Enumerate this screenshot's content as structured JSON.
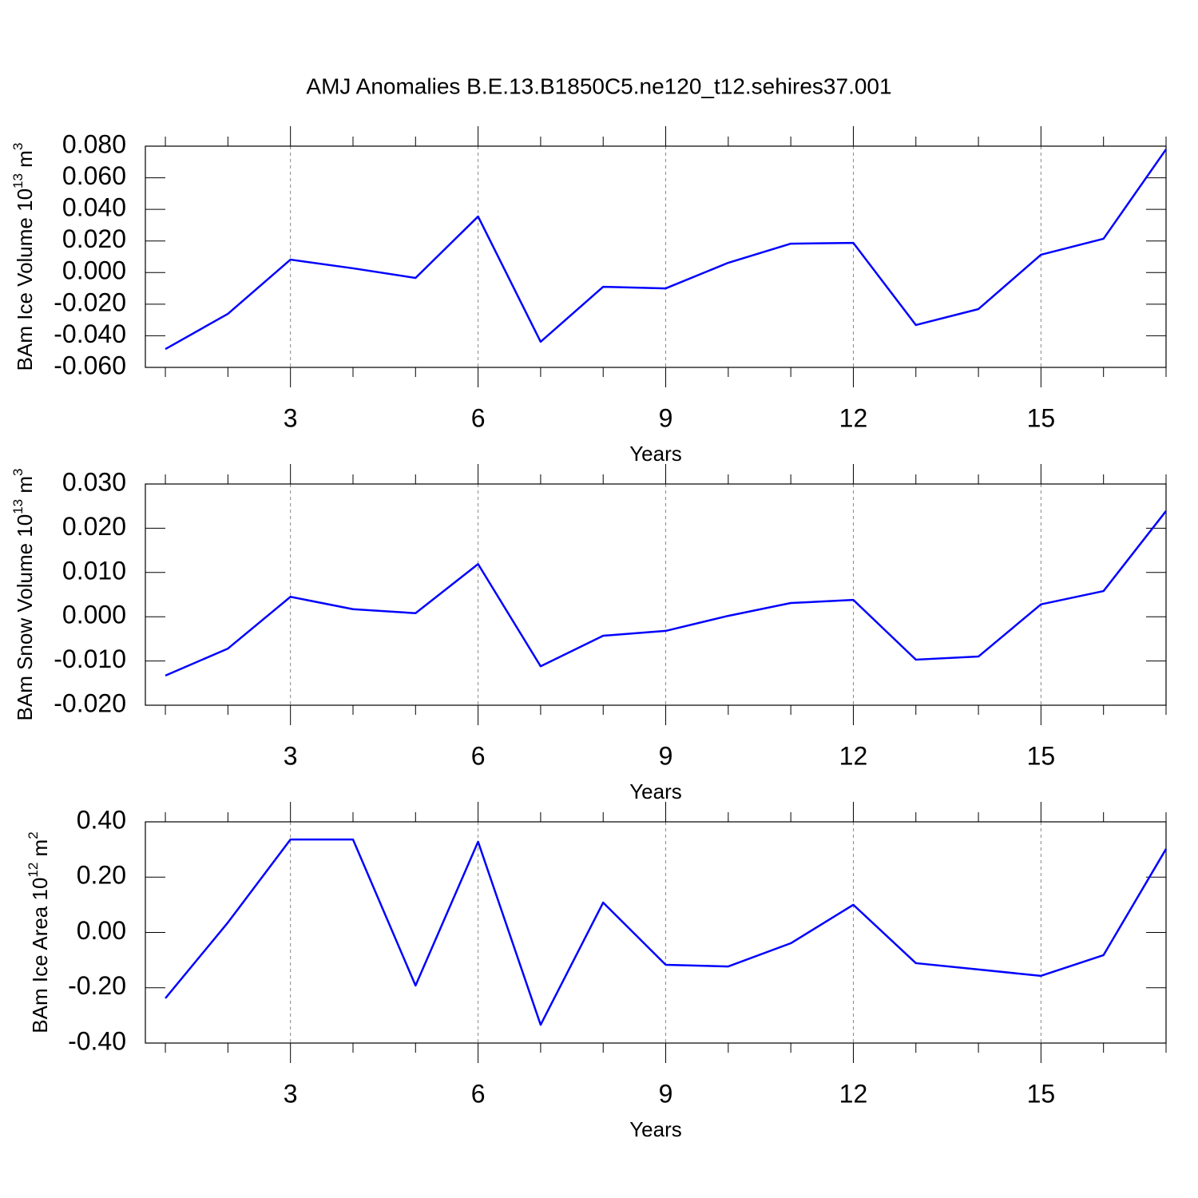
{
  "title": "AMJ Anomalies B.E.13.B1850C5.ne120_t12.sehires37.001",
  "chart_data": [
    {
      "type": "line",
      "xlabel": "Years",
      "ylabel": [
        "BAm Ice Volume 10",
        "13",
        " m",
        "3"
      ],
      "x": [
        1,
        2,
        3,
        4,
        5,
        6,
        7,
        8,
        9,
        10,
        11,
        12,
        13,
        14,
        15,
        16,
        17
      ],
      "values": [
        -0.0484,
        -0.0261,
        0.0082,
        0.0027,
        -0.0034,
        0.0355,
        -0.0438,
        -0.009,
        -0.01,
        0.0062,
        0.0183,
        0.0188,
        -0.0332,
        -0.0231,
        0.0113,
        0.0214,
        0.078
      ],
      "color": "#0000ff",
      "xlim": [
        0.68,
        17
      ],
      "xticks": [
        3,
        6,
        9,
        12,
        15
      ],
      "xminorticks": [
        1,
        2,
        4,
        5,
        7,
        8,
        10,
        11,
        13,
        14,
        16,
        17
      ],
      "grid_x": true,
      "ylim": [
        -0.06,
        0.08
      ],
      "yticks": [
        {
          "value": -0.06,
          "label": "-0.060"
        },
        {
          "value": -0.04,
          "label": "-0.040"
        },
        {
          "value": -0.02,
          "label": "-0.020"
        },
        {
          "value": 0,
          "label": "0.000"
        },
        {
          "value": 0.02,
          "label": "0.020"
        },
        {
          "value": 0.04,
          "label": "0.040"
        },
        {
          "value": 0.06,
          "label": "0.060"
        },
        {
          "value": 0.08,
          "label": "0.080"
        }
      ]
    },
    {
      "type": "line",
      "xlabel": "Years",
      "ylabel": [
        "BAm Snow Volume 10",
        "13",
        " m",
        "3"
      ],
      "x": [
        1,
        2,
        3,
        4,
        5,
        6,
        7,
        8,
        9,
        10,
        11,
        12,
        13,
        14,
        15,
        16,
        17
      ],
      "values": [
        -0.0133,
        -0.0072,
        0.0045,
        0.0017,
        0.0008,
        0.0119,
        -0.0112,
        -0.0043,
        -0.0032,
        0.0002,
        0.0031,
        0.0038,
        -0.0097,
        -0.009,
        0.0028,
        0.0058,
        0.0239
      ],
      "color": "#0000ff",
      "xlim": [
        0.68,
        17
      ],
      "xticks": [
        3,
        6,
        9,
        12,
        15
      ],
      "xminorticks": [
        1,
        2,
        4,
        5,
        7,
        8,
        10,
        11,
        13,
        14,
        16,
        17
      ],
      "grid_x": true,
      "ylim": [
        -0.02,
        0.03
      ],
      "yticks": [
        {
          "value": -0.02,
          "label": "-0.020"
        },
        {
          "value": -0.01,
          "label": "-0.010"
        },
        {
          "value": 0,
          "label": "0.000"
        },
        {
          "value": 0.01,
          "label": "0.010"
        },
        {
          "value": 0.02,
          "label": "0.020"
        },
        {
          "value": 0.03,
          "label": "0.030"
        }
      ]
    },
    {
      "type": "line",
      "xlabel": "Years",
      "ylabel": [
        "BAm Ice Area 10",
        "12",
        " m",
        "2"
      ],
      "x": [
        1,
        2,
        3,
        4,
        5,
        6,
        7,
        8,
        9,
        10,
        11,
        12,
        13,
        14,
        15,
        16,
        17
      ],
      "values": [
        -0.238,
        0.036,
        0.336,
        0.336,
        -0.192,
        0.328,
        -0.334,
        0.108,
        -0.117,
        -0.123,
        -0.039,
        0.1,
        -0.111,
        -0.134,
        -0.157,
        -0.082,
        0.302
      ],
      "color": "#0000ff",
      "xlim": [
        0.68,
        17
      ],
      "xticks": [
        3,
        6,
        9,
        12,
        15
      ],
      "xminorticks": [
        1,
        2,
        4,
        5,
        7,
        8,
        10,
        11,
        13,
        14,
        16,
        17
      ],
      "grid_x": true,
      "ylim": [
        -0.4,
        0.4
      ],
      "yticks": [
        {
          "value": -0.4,
          "label": "-0.40"
        },
        {
          "value": -0.2,
          "label": "-0.20"
        },
        {
          "value": 0,
          "label": "0.00"
        },
        {
          "value": 0.2,
          "label": "0.20"
        },
        {
          "value": 0.4,
          "label": "0.40"
        }
      ]
    }
  ]
}
